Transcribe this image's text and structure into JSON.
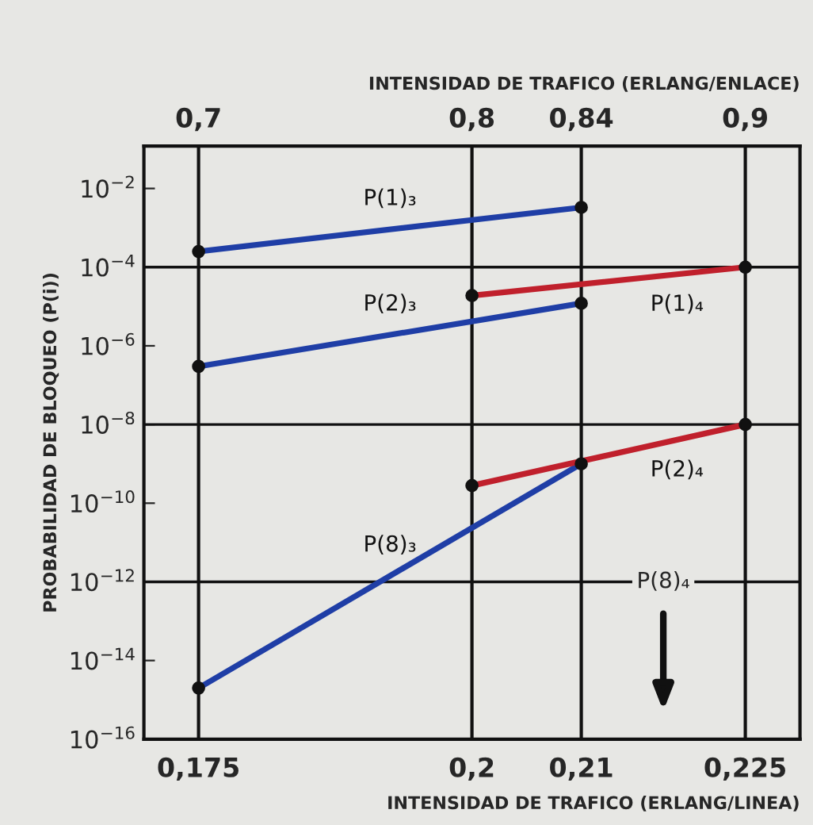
{
  "chart_data": {
    "type": "line",
    "xlabel": "INTENSIDAD DE TRAFICO (ERLANG/LINEA)",
    "x2label": "INTENSIDAD DE TRAFICO (ERLANG/ENLACE)",
    "ylabel": "PROBABILIDAD DE BLOQUEO (P(i))",
    "log": "y",
    "grid": "x",
    "marker": "circle",
    "line_style": "solid",
    "xlim": [
      0.17,
      0.23
    ],
    "xticks": [
      {
        "value": 0.175,
        "label": "0,175"
      },
      {
        "value": 0.2,
        "label": "0,2"
      },
      {
        "value": 0.21,
        "label": "0,21"
      },
      {
        "value": 0.225,
        "label": "0,225"
      }
    ],
    "x2lim": [
      0.68,
      0.92
    ],
    "x2ticks": [
      {
        "value": 0.7,
        "label": "0,7"
      },
      {
        "value": 0.8,
        "label": "0,8"
      },
      {
        "value": 0.84,
        "label": "0,84"
      },
      {
        "value": 0.9,
        "label": "0,9"
      }
    ],
    "ylim": [
      1e-16,
      0.12
    ],
    "yticks": [
      {
        "value": 0.01,
        "label": "10$^{−2}$"
      },
      {
        "value": 0.0001,
        "label": "10$^{−4}$"
      },
      {
        "value": 1e-06,
        "label": "10$^{−6}$"
      },
      {
        "value": 1e-08,
        "label": "10$^{−8}$"
      },
      {
        "value": 1e-10,
        "label": "10$^{−10}$"
      },
      {
        "value": 1e-12,
        "label": "10$^{−12}$"
      },
      {
        "value": 1e-14,
        "label": "10$^{−14}$"
      },
      {
        "value": 1e-16,
        "label": "10$^{−16}$"
      }
    ],
    "ref_lines": [
      {
        "axis": "y",
        "value": 0.0001,
        "color": "#111111"
      },
      {
        "axis": "y",
        "value": 1e-08,
        "color": "#111111"
      },
      {
        "axis": "y",
        "value": 1e-12,
        "color": "#111111"
      }
    ],
    "series": [
      {
        "name": "P(1)₃",
        "color": "#1f3ea6",
        "x": [
          0.175,
          0.21
        ],
        "values": [
          0.00025,
          0.0033
        ]
      },
      {
        "name": "P(2)₃",
        "color": "#1f3ea6",
        "x": [
          0.175,
          0.21
        ],
        "values": [
          3e-07,
          1.2e-05
        ]
      },
      {
        "name": "P(8)₃",
        "color": "#1f3ea6",
        "x": [
          0.175,
          0.21
        ],
        "values": [
          2e-15,
          1e-09
        ]
      },
      {
        "name": "P(1)₄",
        "color": "#c0202c",
        "x": [
          0.2,
          0.225
        ],
        "values": [
          1.9e-05,
          0.0001
        ]
      },
      {
        "name": "P(2)₄",
        "color": "#c0202c",
        "x": [
          0.2,
          0.225
        ],
        "values": [
          2.8e-10,
          1e-08
        ]
      }
    ],
    "annotations": [
      {
        "text": "P(8)₄",
        "x": 0.2175,
        "y": 1e-12
      }
    ]
  }
}
